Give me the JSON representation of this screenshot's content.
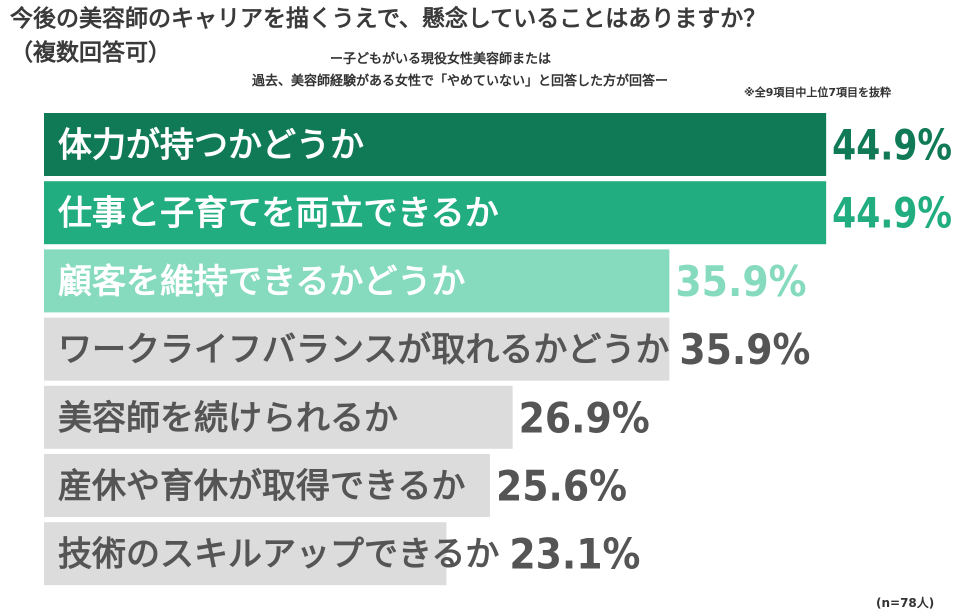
{
  "title_line1": "今後の美容師のキャリアを描くうえで、懸念していることはありますか？",
  "title_line2": "（複数回答可）",
  "subtitle_line1": "ー子どもがいる現役女性美容師または",
  "subtitle_line2": "過去、美容師経験がある女性で「やめていない」と回答した方が回答ー",
  "note": "※全9項目中上位7項目を抜粋",
  "sample_note": "(n=78人)",
  "colors": {
    "dark_green": "#0f7a55",
    "mid_green": "#22ad80",
    "light_green": "#86dbbf",
    "gray": "#dcdcdc",
    "value_dark": "#0f7a55",
    "value_mid": "#22ad80",
    "value_light": "#86dbbf",
    "value_gray": "#555555",
    "label_white": "#ffffff",
    "label_gray": "#555555"
  },
  "chart_data": {
    "type": "bar",
    "orientation": "horizontal",
    "unit": "%",
    "xlim": [
      0,
      100
    ],
    "categories": [
      "体力が持つかどうか",
      "仕事と子育てを両立できるか",
      "顧客を維持できるかどうか",
      "ワークライフバランスが取れるかどうか",
      "美容師を続けられるか",
      "産休や育休が取得できるか",
      "技術のスキルアップできるか"
    ],
    "values": [
      44.9,
      44.9,
      35.9,
      35.9,
      26.9,
      25.6,
      23.1
    ],
    "value_labels": [
      "44.9%",
      "44.9%",
      "35.9%",
      "35.9%",
      "26.9%",
      "25.6%",
      "23.1%"
    ],
    "bar_color_keys": [
      "dark_green",
      "mid_green",
      "light_green",
      "gray",
      "gray",
      "gray",
      "gray"
    ]
  }
}
